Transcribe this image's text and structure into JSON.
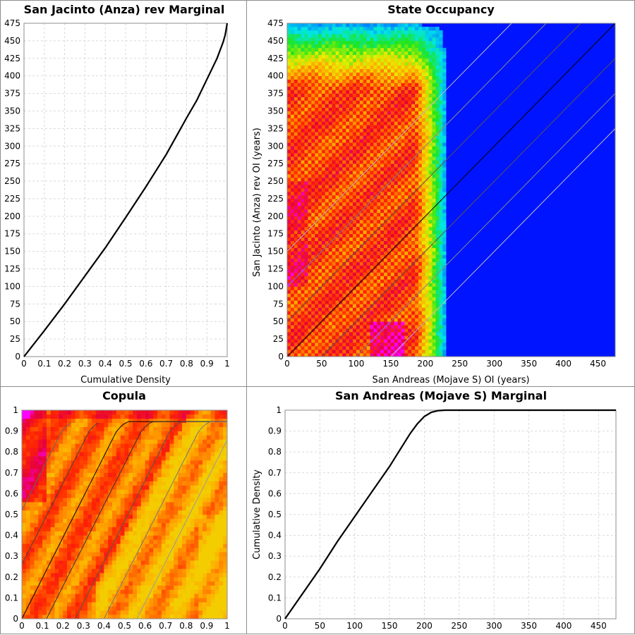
{
  "chart_data": [
    {
      "id": "p1",
      "type": "line",
      "title": "San Jacinto (Anza) rev Marginal",
      "xlabel": "Cumulative Density",
      "ylabel": "",
      "xlim": [
        0,
        1
      ],
      "ylim": [
        0,
        475
      ],
      "xticks": [
        "0",
        "0.1",
        "0.2",
        "0.3",
        "0.4",
        "0.5",
        "0.6",
        "0.7",
        "0.8",
        "0.9",
        "1"
      ],
      "yticks": [
        "0",
        "25",
        "50",
        "75",
        "100",
        "125",
        "150",
        "175",
        "200",
        "225",
        "250",
        "275",
        "300",
        "325",
        "350",
        "375",
        "400",
        "425",
        "450",
        "475"
      ],
      "grid": true,
      "series": [
        {
          "x": [
            0,
            0.1,
            0.2,
            0.3,
            0.4,
            0.5,
            0.6,
            0.7,
            0.8,
            0.85,
            0.9,
            0.95,
            0.98,
            0.99,
            1.0
          ],
          "y": [
            0,
            37,
            75,
            115,
            155,
            198,
            242,
            288,
            340,
            365,
            395,
            425,
            448,
            458,
            475
          ],
          "color": "#000000"
        }
      ]
    },
    {
      "id": "p2",
      "type": "heatmap",
      "title": "State Occupancy",
      "xlabel": "San Andreas (Mojave S) OI (years)",
      "ylabel": "San Jacinto (Anza) rev OI (years)",
      "xlim": [
        0,
        475
      ],
      "ylim": [
        0,
        475
      ],
      "xticks": [
        "0",
        "50",
        "100",
        "150",
        "200",
        "250",
        "300",
        "350",
        "400",
        "450"
      ],
      "yticks": [
        "0",
        "25",
        "50",
        "75",
        "100",
        "125",
        "150",
        "175",
        "200",
        "225",
        "250",
        "275",
        "300",
        "325",
        "350",
        "375",
        "400",
        "425",
        "450",
        "475"
      ],
      "diagonal_offsets": [
        150,
        100,
        50,
        0,
        -50,
        -100,
        -150
      ],
      "diagonal_colors": [
        "#bbbbbb",
        "#888888",
        "#555555",
        "#000000",
        "#555555",
        "#888888",
        "#bbbbbb"
      ]
    },
    {
      "id": "p3",
      "type": "heatmap",
      "title": "Copula",
      "xlabel": "",
      "ylabel": "",
      "xlim": [
        0,
        1
      ],
      "ylim": [
        0,
        1
      ],
      "xticks": [
        "0",
        "0.1",
        "0.2",
        "0.3",
        "0.4",
        "0.5",
        "0.6",
        "0.7",
        "0.8",
        "0.9",
        "1"
      ],
      "yticks": [
        "0",
        "0.1",
        "0.2",
        "0.3",
        "0.4",
        "0.5",
        "0.6",
        "0.7",
        "0.8",
        "0.9",
        "1"
      ]
    },
    {
      "id": "p4",
      "type": "line",
      "title": "San Andreas (Mojave S) Marginal",
      "xlabel": "",
      "ylabel": "Cumulative Density",
      "xlim": [
        0,
        475
      ],
      "ylim": [
        0,
        1
      ],
      "xticks": [
        "0",
        "50",
        "100",
        "150",
        "200",
        "250",
        "300",
        "350",
        "400",
        "450"
      ],
      "yticks": [
        "0",
        "0.1",
        "0.2",
        "0.3",
        "0.4",
        "0.5",
        "0.6",
        "0.7",
        "0.8",
        "0.9",
        "1"
      ],
      "grid": true,
      "series": [
        {
          "x": [
            0,
            25,
            50,
            75,
            100,
            125,
            150,
            165,
            180,
            190,
            200,
            210,
            220,
            230,
            250,
            300,
            400,
            475
          ],
          "y": [
            0,
            0.12,
            0.24,
            0.37,
            0.49,
            0.61,
            0.73,
            0.81,
            0.89,
            0.935,
            0.97,
            0.99,
            0.998,
            1.0,
            1.0,
            1.0,
            1.0,
            1.0
          ],
          "color": "#000000"
        }
      ]
    }
  ]
}
